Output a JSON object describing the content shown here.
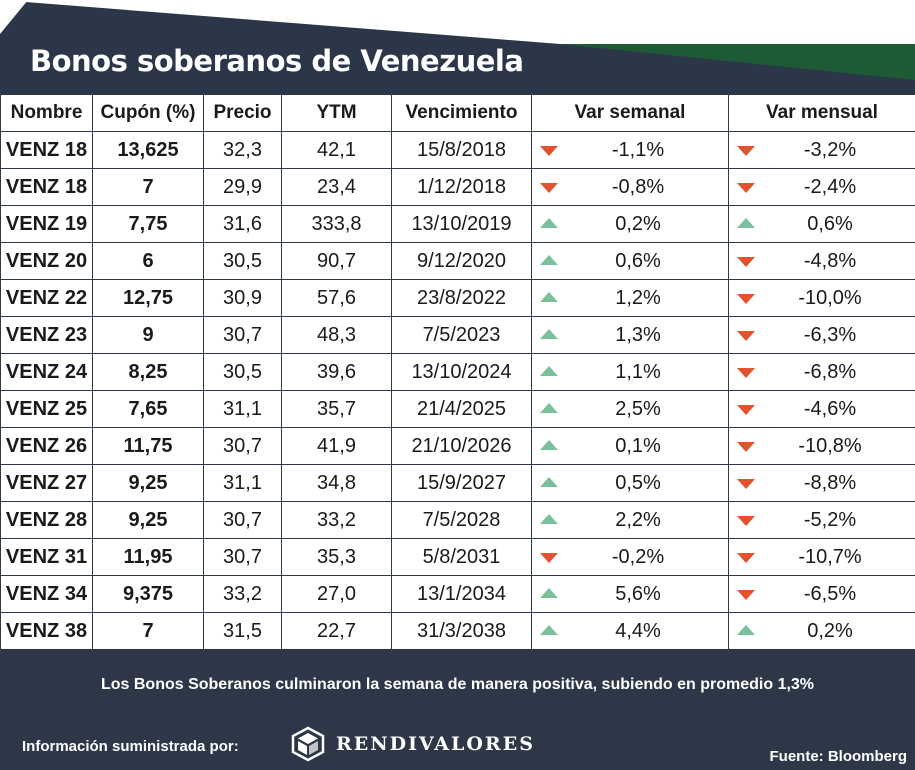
{
  "title": "Bonos soberanos de Venezuela",
  "colors": {
    "background": "#2d3748",
    "down": "#e2522f",
    "up": "#7cbf9b",
    "accent": "#1f5a36"
  },
  "columns": [
    "Nombre",
    "Cupón (%)",
    "Precio",
    "YTM",
    "Vencimiento",
    "Var semanal",
    "Var mensual"
  ],
  "rows": [
    {
      "name": "VENZ 18",
      "coupon": "13,625",
      "price": "32,3",
      "ytm": "42,1",
      "maturity": "15/8/2018",
      "weekly": "-1,1%",
      "weekly_dir": "down",
      "monthly": "-3,2%",
      "monthly_dir": "down"
    },
    {
      "name": "VENZ 18",
      "coupon": "7",
      "price": "29,9",
      "ytm": "23,4",
      "maturity": "1/12/2018",
      "weekly": "-0,8%",
      "weekly_dir": "down",
      "monthly": "-2,4%",
      "monthly_dir": "down"
    },
    {
      "name": "VENZ 19",
      "coupon": "7,75",
      "price": "31,6",
      "ytm": "333,8",
      "maturity": "13/10/2019",
      "weekly": "0,2%",
      "weekly_dir": "up",
      "monthly": "0,6%",
      "monthly_dir": "up"
    },
    {
      "name": "VENZ 20",
      "coupon": "6",
      "price": "30,5",
      "ytm": "90,7",
      "maturity": "9/12/2020",
      "weekly": "0,6%",
      "weekly_dir": "up",
      "monthly": "-4,8%",
      "monthly_dir": "down"
    },
    {
      "name": "VENZ 22",
      "coupon": "12,75",
      "price": "30,9",
      "ytm": "57,6",
      "maturity": "23/8/2022",
      "weekly": "1,2%",
      "weekly_dir": "up",
      "monthly": "-10,0%",
      "monthly_dir": "down"
    },
    {
      "name": "VENZ 23",
      "coupon": "9",
      "price": "30,7",
      "ytm": "48,3",
      "maturity": "7/5/2023",
      "weekly": "1,3%",
      "weekly_dir": "up",
      "monthly": "-6,3%",
      "monthly_dir": "down"
    },
    {
      "name": "VENZ 24",
      "coupon": "8,25",
      "price": "30,5",
      "ytm": "39,6",
      "maturity": "13/10/2024",
      "weekly": "1,1%",
      "weekly_dir": "up",
      "monthly": "-6,8%",
      "monthly_dir": "down"
    },
    {
      "name": "VENZ 25",
      "coupon": "7,65",
      "price": "31,1",
      "ytm": "35,7",
      "maturity": "21/4/2025",
      "weekly": "2,5%",
      "weekly_dir": "up",
      "monthly": "-4,6%",
      "monthly_dir": "down"
    },
    {
      "name": "VENZ 26",
      "coupon": "11,75",
      "price": "30,7",
      "ytm": "41,9",
      "maturity": "21/10/2026",
      "weekly": "0,1%",
      "weekly_dir": "up",
      "monthly": "-10,8%",
      "monthly_dir": "down"
    },
    {
      "name": "VENZ 27",
      "coupon": "9,25",
      "price": "31,1",
      "ytm": "34,8",
      "maturity": "15/9/2027",
      "weekly": "0,5%",
      "weekly_dir": "up",
      "monthly": "-8,8%",
      "monthly_dir": "down"
    },
    {
      "name": "VENZ 28",
      "coupon": "9,25",
      "price": "30,7",
      "ytm": "33,2",
      "maturity": "7/5/2028",
      "weekly": "2,2%",
      "weekly_dir": "up",
      "monthly": "-5,2%",
      "monthly_dir": "down"
    },
    {
      "name": "VENZ 31",
      "coupon": "11,95",
      "price": "30,7",
      "ytm": "35,3",
      "maturity": "5/8/2031",
      "weekly": "-0,2%",
      "weekly_dir": "down",
      "monthly": "-10,7%",
      "monthly_dir": "down"
    },
    {
      "name": "VENZ 34",
      "coupon": "9,375",
      "price": "33,2",
      "ytm": "27,0",
      "maturity": "13/1/2034",
      "weekly": "5,6%",
      "weekly_dir": "up",
      "monthly": "-6,5%",
      "monthly_dir": "down"
    },
    {
      "name": "VENZ 38",
      "coupon": "7",
      "price": "31,5",
      "ytm": "22,7",
      "maturity": "31/3/2038",
      "weekly": "4,4%",
      "weekly_dir": "up",
      "monthly": "0,2%",
      "monthly_dir": "up"
    }
  ],
  "summary": "Los Bonos Soberanos culminaron la semana de manera positiva, subiendo en promedio 1,3%",
  "footer": {
    "info_label": "Información suministrada por:",
    "logo_text": "RENDIVALORES",
    "source": "Fuente: Bloomberg"
  }
}
